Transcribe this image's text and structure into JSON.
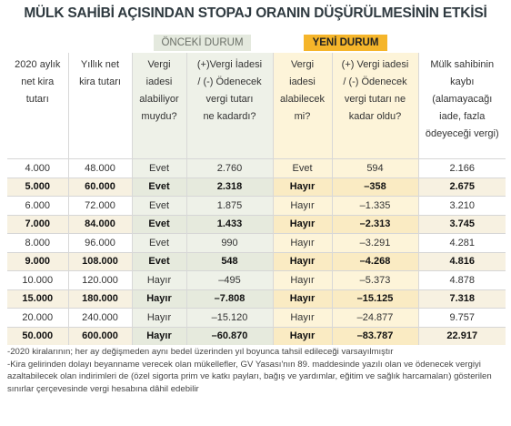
{
  "title": "MÜLK SAHİBİ AÇISINDAN STOPAJ ORANIN DÜŞÜRÜLMESİNİN ETKİSİ",
  "groups": {
    "previous": "ÖNCEKİ DURUM",
    "new": "YENİ DURUM"
  },
  "table": {
    "header": [
      [
        "2020 aylık",
        "net kira",
        "tutarı"
      ],
      [
        "Yıllık net",
        "kira tutarı"
      ],
      [
        "Vergi",
        "iadesi",
        "alabiliyor",
        "muydu?"
      ],
      [
        "(+)Vergi İadesi",
        "/ (-) Ödenecek",
        "vergi tutarı",
        "ne kadardı?"
      ],
      [
        "Vergi",
        "iadesi",
        "alabilecek",
        "mi?"
      ],
      [
        "(+) Vergi iadesi",
        "/ (-) Ödenecek",
        "vergi tutarı ne",
        "kadar oldu?"
      ],
      [
        "Mülk sahibinin",
        "kaybı",
        "(alamayacağı",
        "iade, fazla",
        "ödeyeceği vergi)"
      ]
    ],
    "rows": [
      [
        "4.000",
        "48.000",
        "Evet",
        "2.760",
        "Evet",
        "594",
        "2.166"
      ],
      [
        "5.000",
        "60.000",
        "Evet",
        "2.318",
        "Hayır",
        "–358",
        "2.675"
      ],
      [
        "6.000",
        "72.000",
        "Evet",
        "1.875",
        "Hayır",
        "–1.335",
        "3.210"
      ],
      [
        "7.000",
        "84.000",
        "Evet",
        "1.433",
        "Hayır",
        "–2.313",
        "3.745"
      ],
      [
        "8.000",
        "96.000",
        "Evet",
        "990",
        "Hayır",
        "–3.291",
        "4.281"
      ],
      [
        "9.000",
        "108.000",
        "Evet",
        "548",
        "Hayır",
        "–4.268",
        "4.816"
      ],
      [
        "10.000",
        "120.000",
        "Hayır",
        "–495",
        "Hayır",
        "–5.373",
        "4.878"
      ],
      [
        "15.000",
        "180.000",
        "Hayır",
        "–7.808",
        "Hayır",
        "–15.125",
        "7.318"
      ],
      [
        "20.000",
        "240.000",
        "Hayır",
        "–15.120",
        "Hayır",
        "–24.877",
        "9.757"
      ],
      [
        "50.000",
        "600.000",
        "Hayır",
        "–60.870",
        "Hayır",
        "–83.787",
        "22.917"
      ]
    ]
  },
  "notes": [
    "-2020 kiralarının; her ay değişmeden aynı bedel üzerinden yıl boyunca tahsil edileceği varsayılmıştır",
    "-Kira gelirinden dolayı beyanname verecek olan mükellefler, GV Yasası'nın 89. maddesinde yazılı olan ve ödenecek vergiyi azaltabilecek olan indirimleri de (özel sigorta prim ve katkı payları, bağış ve yardımlar, eğitim ve sağlık harcamaları) gösterilen sınırlar çerçevesinde vergi hesabına dâhil edebilir"
  ]
}
